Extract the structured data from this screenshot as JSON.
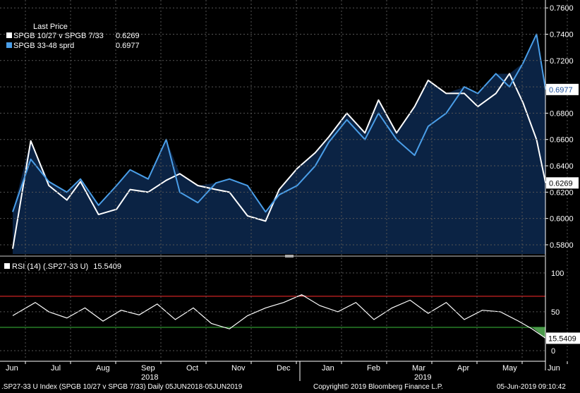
{
  "legend": {
    "header": "Last Price",
    "items": [
      {
        "name": "SPGB 10/27 v SPGB 7/33",
        "value": "0.6269",
        "color": "#ffffff"
      },
      {
        "name": "SPGB 33-48 sprd",
        "value": "0.6977",
        "color": "#4a9ee8"
      }
    ]
  },
  "rsi_legend": {
    "name": "RSI (14) (.SP27-33 U)",
    "value": "15.5409"
  },
  "footer": {
    "left": ".SP27-33 U Index (SPGB 10/27 v SPGB 7/33)  Daily 05JUN2018-05JUN2019",
    "center": "Copyright© 2019 Bloomberg Finance L.P.",
    "right": "05-Jun-2019 09:10:42"
  },
  "colors": {
    "fill": "#0b2344",
    "white_series": "#ffffff",
    "blue_series": "#4a9ee8",
    "overbought": "#cc2222",
    "oversold": "#33aa33"
  },
  "chart_data": [
    {
      "type": "line",
      "x_months": [
        "Jun",
        "Jul",
        "Aug",
        "Sep",
        "Oct",
        "Nov",
        "Dec",
        "Jan",
        "Feb",
        "Mar",
        "Apr",
        "May",
        "Jun"
      ],
      "x_years": [
        "2018",
        "2019"
      ],
      "ylim": [
        0.573,
        0.766
      ],
      "yticks": [
        "0.5800",
        "0.6000",
        "0.6200",
        "0.6400",
        "0.6600",
        "0.6800",
        "0.7000",
        "0.7200",
        "0.7400",
        "0.7600"
      ],
      "last_labels": {
        "white": "0.6269",
        "blue": "0.6977"
      },
      "series": [
        {
          "name": "SPGB 10/27 v SPGB 7/33",
          "color": "#ffffff",
          "x": [
            0,
            0.4,
            0.8,
            1.2,
            1.5,
            1.9,
            2.3,
            2.6,
            3.0,
            3.4,
            3.7,
            4.1,
            4.5,
            4.8,
            5.2,
            5.6,
            5.9,
            6.3,
            6.7,
            7.0,
            7.4,
            7.8,
            8.1,
            8.5,
            8.9,
            9.2,
            9.6,
            10.0,
            10.3,
            10.7,
            11.0,
            11.3,
            11.6,
            11.8
          ],
          "values": [
            0.577,
            0.659,
            0.625,
            0.614,
            0.628,
            0.603,
            0.607,
            0.622,
            0.62,
            0.629,
            0.634,
            0.625,
            0.622,
            0.62,
            0.602,
            0.598,
            0.622,
            0.638,
            0.65,
            0.662,
            0.68,
            0.665,
            0.69,
            0.665,
            0.685,
            0.705,
            0.695,
            0.695,
            0.685,
            0.695,
            0.71,
            0.688,
            0.66,
            0.627
          ]
        },
        {
          "name": "SPGB 33-48 sprd",
          "color": "#4a9ee8",
          "x": [
            0,
            0.4,
            0.8,
            1.2,
            1.5,
            1.9,
            2.3,
            2.6,
            3.0,
            3.4,
            3.7,
            4.1,
            4.5,
            4.8,
            5.2,
            5.6,
            5.9,
            6.3,
            6.7,
            7.0,
            7.4,
            7.8,
            8.1,
            8.5,
            8.9,
            9.2,
            9.6,
            10.0,
            10.3,
            10.7,
            11.0,
            11.3,
            11.6,
            11.8
          ],
          "values": [
            0.605,
            0.645,
            0.628,
            0.62,
            0.63,
            0.61,
            0.625,
            0.637,
            0.63,
            0.66,
            0.62,
            0.612,
            0.627,
            0.63,
            0.625,
            0.605,
            0.618,
            0.625,
            0.64,
            0.658,
            0.675,
            0.66,
            0.68,
            0.66,
            0.648,
            0.67,
            0.68,
            0.7,
            0.695,
            0.71,
            0.7,
            0.718,
            0.74,
            0.698
          ]
        }
      ]
    },
    {
      "type": "line",
      "title": "RSI (14)",
      "ylim": [
        -10,
        118
      ],
      "yticks": [
        "0",
        "50",
        "100"
      ],
      "levels": [
        70,
        30
      ],
      "last_label": "15.5409",
      "series": [
        {
          "name": "RSI (14) (.SP27-33 U)",
          "color": "#ffffff",
          "x": [
            0,
            0.5,
            0.8,
            1.2,
            1.6,
            2.0,
            2.4,
            2.8,
            3.2,
            3.6,
            4.0,
            4.4,
            4.8,
            5.2,
            5.6,
            6.0,
            6.4,
            6.8,
            7.2,
            7.6,
            8.0,
            8.4,
            8.8,
            9.2,
            9.6,
            10.0,
            10.4,
            10.8,
            11.2,
            11.5,
            11.8
          ],
          "values": [
            45,
            62,
            50,
            42,
            55,
            38,
            52,
            46,
            60,
            40,
            55,
            35,
            28,
            45,
            55,
            62,
            72,
            58,
            50,
            62,
            40,
            55,
            65,
            48,
            62,
            40,
            52,
            50,
            38,
            28,
            16
          ]
        }
      ]
    }
  ]
}
